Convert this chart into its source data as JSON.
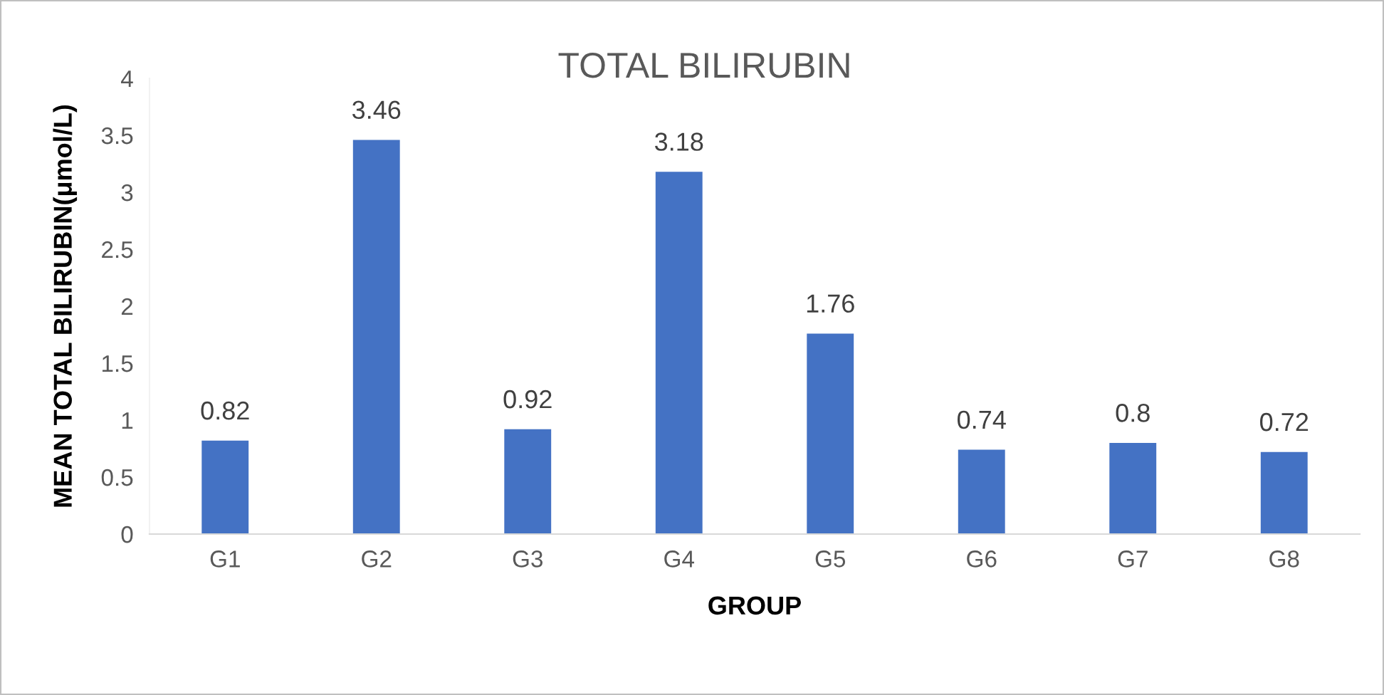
{
  "chart_data": {
    "type": "bar",
    "title": "TOTAL BILIRUBIN",
    "xlabel": "GROUP",
    "ylabel": "MEAN TOTAL BILIRUBIN(μmol/L)",
    "categories": [
      "G1",
      "G2",
      "G3",
      "G4",
      "G5",
      "G6",
      "G7",
      "G8"
    ],
    "values": [
      0.82,
      3.46,
      0.92,
      3.18,
      1.76,
      0.74,
      0.8,
      0.72
    ],
    "color": "#4472c4",
    "ylim": [
      0,
      4
    ],
    "yticks": [
      0,
      0.5,
      1,
      1.5,
      2,
      2.5,
      3,
      3.5,
      4
    ],
    "grid": false,
    "data_labels": true
  }
}
